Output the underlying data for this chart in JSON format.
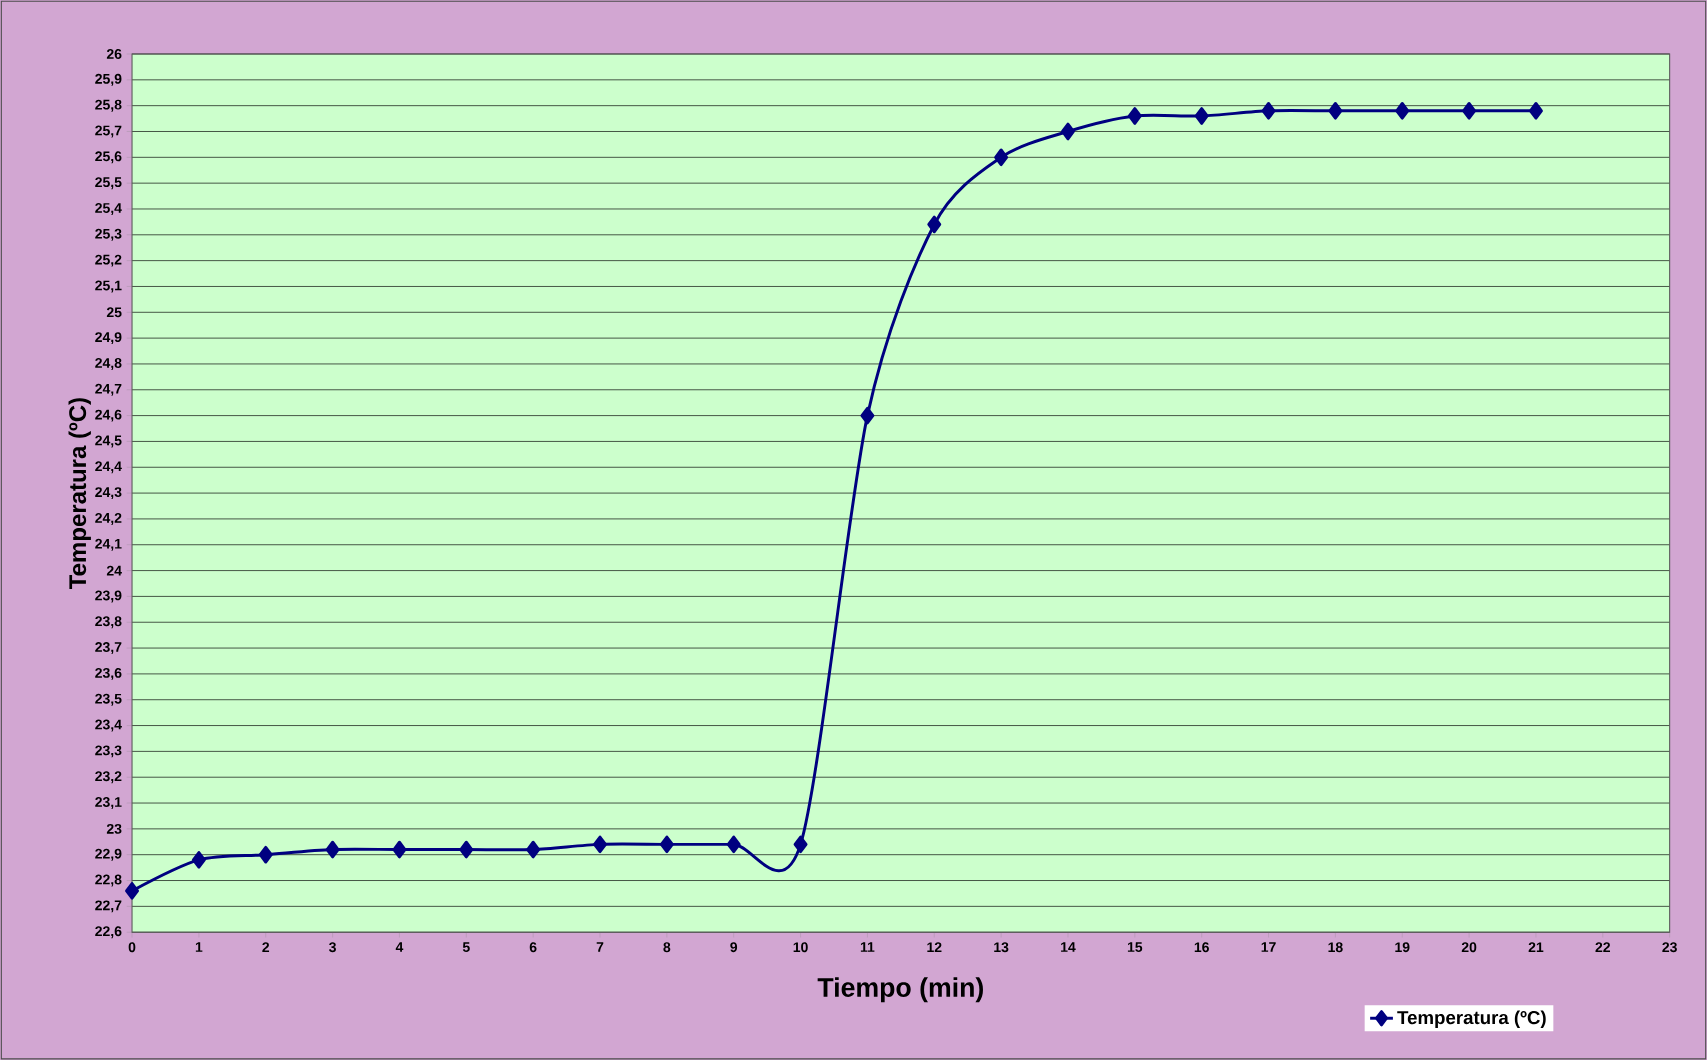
{
  "chart_data": {
    "type": "line",
    "xlabel": "Tiempo (min)",
    "ylabel": "Temperatura (ºC)",
    "x": [
      0,
      1,
      2,
      3,
      4,
      5,
      6,
      7,
      8,
      9,
      10,
      11,
      12,
      13,
      14,
      15,
      16,
      17,
      18,
      19,
      20,
      21
    ],
    "series": [
      {
        "name": "Temperatura (ºC)",
        "color": "#000080",
        "values": [
          22.76,
          22.88,
          22.9,
          22.92,
          22.92,
          22.92,
          22.92,
          22.94,
          22.94,
          22.94,
          22.94,
          24.6,
          25.34,
          25.6,
          25.7,
          25.76,
          25.76,
          25.78,
          25.78,
          25.78,
          25.78,
          25.78
        ]
      }
    ],
    "xlim": [
      0,
      23
    ],
    "xticks": [
      0,
      1,
      2,
      3,
      4,
      5,
      6,
      7,
      8,
      9,
      10,
      11,
      12,
      13,
      14,
      15,
      16,
      17,
      18,
      19,
      20,
      21,
      22,
      23
    ],
    "ylim": [
      22.6,
      26
    ],
    "yticks": [
      {
        "value": 22.6,
        "label": "22,6"
      },
      {
        "value": 22.7,
        "label": "22,7"
      },
      {
        "value": 22.8,
        "label": "22,8"
      },
      {
        "value": 22.9,
        "label": "22,9"
      },
      23,
      {
        "value": 23.1,
        "label": "23,1"
      },
      {
        "value": 23.2,
        "label": "23,2"
      },
      {
        "value": 23.3,
        "label": "23,3"
      },
      {
        "value": 23.4,
        "label": "23,4"
      },
      {
        "value": 23.5,
        "label": "23,5"
      },
      {
        "value": 23.6,
        "label": "23,6"
      },
      {
        "value": 23.7,
        "label": "23,7"
      },
      {
        "value": 23.8,
        "label": "23,8"
      },
      {
        "value": 23.9,
        "label": "23,9"
      },
      24,
      {
        "value": 24.1,
        "label": "24,1"
      },
      {
        "value": 24.2,
        "label": "24,2"
      },
      {
        "value": 24.3,
        "label": "24,3"
      },
      {
        "value": 24.4,
        "label": "24,4"
      },
      {
        "value": 24.5,
        "label": "24,5"
      },
      {
        "value": 24.6,
        "label": "24,6"
      },
      {
        "value": 24.7,
        "label": "24,7"
      },
      {
        "value": 24.8,
        "label": "24,8"
      },
      {
        "value": 24.9,
        "label": "24,9"
      },
      25,
      {
        "value": 25.1,
        "label": "25,1"
      },
      {
        "value": 25.2,
        "label": "25,2"
      },
      {
        "value": 25.3,
        "label": "25,3"
      },
      {
        "value": 25.4,
        "label": "25,4"
      },
      {
        "value": 25.5,
        "label": "25,5"
      },
      {
        "value": 25.6,
        "label": "25,6"
      },
      {
        "value": 25.7,
        "label": "25,7"
      },
      {
        "value": 25.8,
        "label": "25,8"
      },
      {
        "value": 25.9,
        "label": "25,9"
      },
      26
    ],
    "grid": "y",
    "legend": "bottom right",
    "marker": "diamond",
    "line_style": "solid"
  }
}
